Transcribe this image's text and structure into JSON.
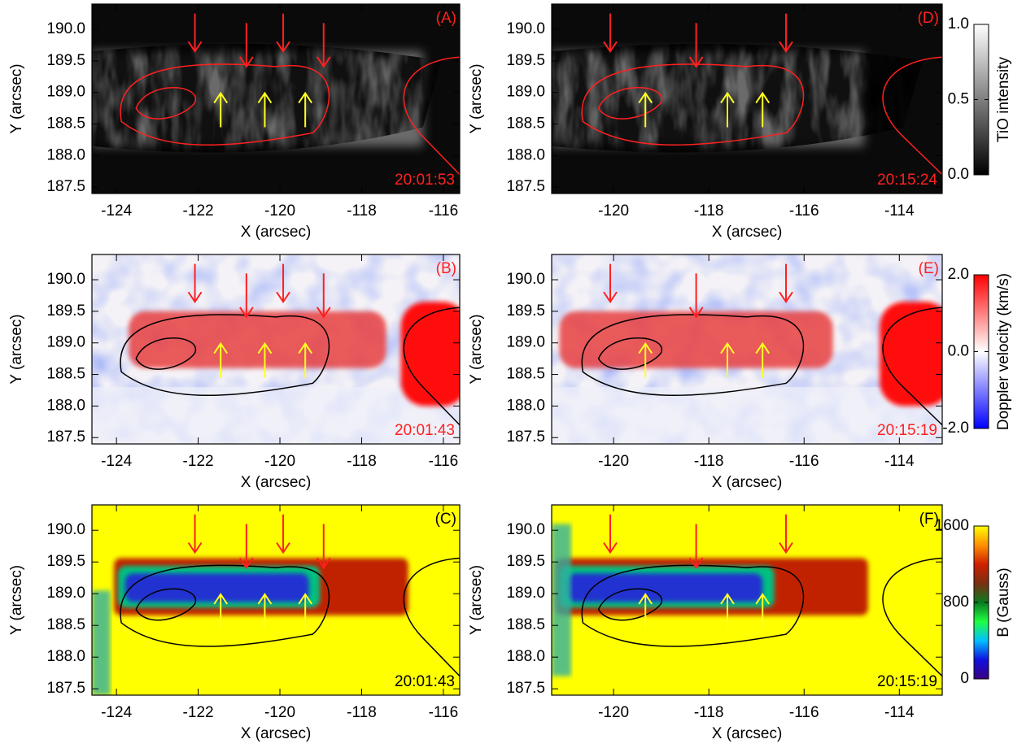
{
  "chart_data": [
    {
      "type": "heatmap",
      "panel_label": "(A)",
      "timestamp": "20:01:53",
      "label_color": "#ff2020",
      "xlabel": "X (arcsec)",
      "ylabel": "Y (arcsec)",
      "xlim": [
        -124.6,
        -115.6
      ],
      "ylim": [
        187.4,
        190.4
      ],
      "xticks": [
        -124,
        -122,
        -120,
        -118,
        -116
      ],
      "yticks": [
        {
          "value": 190,
          "label": "190.0"
        },
        189.5,
        {
          "value": 189,
          "label": "189.0"
        },
        188.5,
        {
          "value": 188,
          "label": "188.0"
        },
        187.5
      ]
    },
    {
      "type": "heatmap",
      "panel_label": "(B)",
      "timestamp": "20:01:43",
      "label_color": "#ff2020",
      "xlabel": "X (arcsec)",
      "ylabel": "Y (arcsec)",
      "xlim": [
        -124.6,
        -115.6
      ],
      "ylim": [
        187.4,
        190.4
      ],
      "xticks": [
        -124,
        -122,
        -120,
        -118,
        -116
      ],
      "yticks": [
        {
          "value": 190,
          "label": "190.0"
        },
        189.5,
        {
          "value": 189,
          "label": "189.0"
        },
        188.5,
        {
          "value": 188,
          "label": "188.0"
        },
        187.5
      ]
    },
    {
      "type": "heatmap",
      "panel_label": "(C)",
      "timestamp": "20:01:43",
      "label_color": "#000000",
      "xlabel": "X (arcsec)",
      "ylabel": "Y (arcsec)",
      "xlim": [
        -124.6,
        -115.6
      ],
      "ylim": [
        187.4,
        190.4
      ],
      "xticks": [
        -124,
        -122,
        -120,
        -118,
        -116
      ],
      "yticks": [
        {
          "value": 190,
          "label": "190.0"
        },
        189.5,
        {
          "value": 189,
          "label": "189.0"
        },
        188.5,
        {
          "value": 188,
          "label": "188.0"
        },
        187.5
      ]
    },
    {
      "type": "heatmap",
      "panel_label": "(D)",
      "timestamp": "20:15:24",
      "label_color": "#ff2020",
      "xlabel": "X (arcsec)",
      "ylabel": "Y (arcsec)",
      "xlim": [
        -121.3,
        -113.1
      ],
      "ylim": [
        187.4,
        190.4
      ],
      "xticks": [
        -120,
        -118,
        -116,
        -114
      ],
      "yticks": [
        {
          "value": 190,
          "label": "190.0"
        },
        189.5,
        {
          "value": 189,
          "label": "189.0"
        },
        188.5,
        {
          "value": 188,
          "label": "188.0"
        },
        187.5
      ]
    },
    {
      "type": "heatmap",
      "panel_label": "(E)",
      "timestamp": "20:15:19",
      "label_color": "#ff2020",
      "xlabel": "X (arcsec)",
      "ylabel": "Y (arcsec)",
      "xlim": [
        -121.3,
        -113.1
      ],
      "ylim": [
        187.4,
        190.4
      ],
      "xticks": [
        -120,
        -118,
        -116,
        -114
      ],
      "yticks": [
        {
          "value": 190,
          "label": "190.0"
        },
        189.5,
        {
          "value": 189,
          "label": "189.0"
        },
        188.5,
        {
          "value": 188,
          "label": "188.0"
        },
        187.5
      ]
    },
    {
      "type": "heatmap",
      "panel_label": "(F)",
      "timestamp": "20:15:19",
      "label_color": "#000000",
      "xlabel": "X (arcsec)",
      "ylabel": "Y (arcsec)",
      "xlim": [
        -121.3,
        -113.1
      ],
      "ylim": [
        187.4,
        190.4
      ],
      "xticks": [
        -120,
        -118,
        -116,
        -114
      ],
      "yticks": [
        {
          "value": 190,
          "label": "190.0"
        },
        189.5,
        {
          "value": 189,
          "label": "189.0"
        },
        188.5,
        {
          "value": 188,
          "label": "188.0"
        },
        187.5
      ]
    },
    {
      "type": "colorbar",
      "label": "TiO intensity",
      "ylim": [
        0,
        1
      ],
      "yticks": [
        {
          "value": 0,
          "label": "0.0"
        },
        0.5,
        {
          "value": 1,
          "label": "1.0"
        }
      ],
      "colors": [
        "#000000",
        "#ffffff"
      ]
    },
    {
      "type": "colorbar",
      "label": "Doppler velocity (km/s)",
      "ylim": [
        -2,
        2
      ],
      "yticks": [
        {
          "value": -2,
          "label": "-2.0"
        },
        {
          "value": 0,
          "label": "0.0"
        },
        {
          "value": 2,
          "label": "2.0"
        }
      ],
      "colors": [
        "#0000ff",
        "#ffffff",
        "#ff0000"
      ]
    },
    {
      "type": "colorbar",
      "label": "B (Gauss)",
      "ylim": [
        0,
        1600
      ],
      "yticks": [
        0,
        800,
        1600
      ],
      "colors": [
        "#3a0080",
        "#1010e0",
        "#00c0ff",
        "#20ff40",
        "#0a7a20",
        "#7a3010",
        "#d02000",
        "#ff9000",
        "#ffff00"
      ]
    }
  ]
}
